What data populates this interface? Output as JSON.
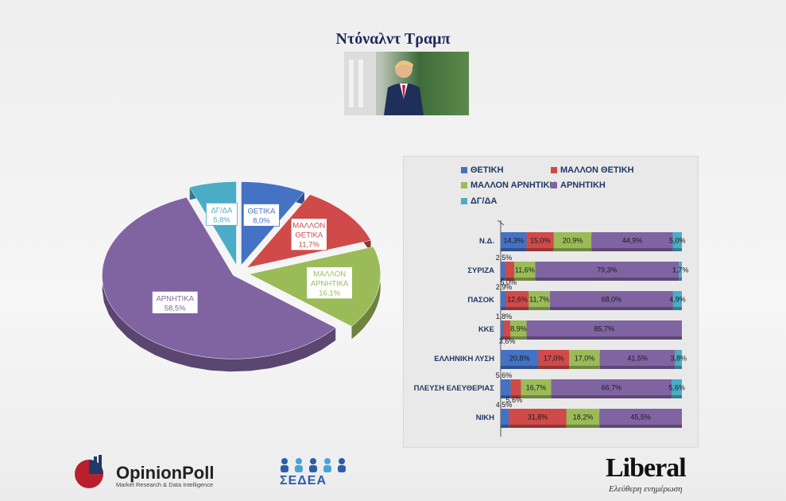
{
  "title": "Ντόναλντ Τραμπ",
  "colors": {
    "positive": "#4472c4",
    "rather_positive": "#d04a4a",
    "rather_negative": "#9bbb59",
    "negative": "#8064a2",
    "dk_na": "#4bacc6"
  },
  "chart_data": [
    {
      "type": "pie",
      "title": "",
      "slices": [
        {
          "label": "ΘΕΤΙΚΑ",
          "value": 8.0,
          "value_label": "8,0%"
        },
        {
          "label": "ΜΑΛΛΟΝ ΘΕΤΙΚΑ",
          "value": 11.7,
          "value_label": "11,7%"
        },
        {
          "label": "ΜΑΛΛΟΝ ΑΡΝΗΤΙΚΑ",
          "value": 16.1,
          "value_label": "16,1%"
        },
        {
          "label": "ΑΡΝΗΤΙΚΑ",
          "value": 58.5,
          "value_label": "58,5%"
        },
        {
          "label": "ΔΓ/ΔΑ",
          "value": 5.8,
          "value_label": "5,8%"
        }
      ]
    },
    {
      "type": "bar",
      "orientation": "horizontal",
      "stacked": true,
      "legend_position": "top",
      "categories": [
        "Ν.Δ.",
        "ΣΥΡΙΖΑ",
        "ΠΑΣΟΚ",
        "ΚΚΕ",
        "ΕΛΛΗΝΙΚΗ ΛΥΣΗ",
        "ΠΛΕΥΣΗ ΕΛΕΥΘΕΡΙΑΣ",
        "ΝΙΚΗ"
      ],
      "series": [
        {
          "name": "ΘΕΤΙΚΗ",
          "values": [
            14.3,
            2.5,
            2.9,
            1.8,
            20.8,
            5.6,
            4.5
          ],
          "labels": [
            "14,3%",
            "2,5%",
            "2,9%",
            "1,8%",
            "20,8%",
            "5,6%",
            "4,5%"
          ]
        },
        {
          "name": "ΜΑΛΛΟΝ ΘΕΤΙΚΗ",
          "values": [
            15.0,
            5.0,
            12.6,
            3.6,
            17.0,
            5.6,
            31.8
          ],
          "labels": [
            "15,0%",
            "5,0%",
            "12,6%",
            "3,6%",
            "17,0%",
            "5,6%",
            "31,8%"
          ]
        },
        {
          "name": "ΜΑΛΛΟΝ ΑΡΝΗΤΙΚΗ",
          "values": [
            20.9,
            11.6,
            11.7,
            8.9,
            17.0,
            16.7,
            18.2
          ],
          "labels": [
            "20,9%",
            "11,6%",
            "11,7%",
            "8,9%",
            "17,0%",
            "16,7%",
            "18,2%"
          ]
        },
        {
          "name": "ΑΡΝΗΤΙΚΗ",
          "values": [
            44.9,
            79.3,
            68.0,
            85.7,
            41.5,
            66.7,
            45.5
          ],
          "labels": [
            "44,9%",
            "79,3%",
            "68,0%",
            "85,7%",
            "41,5%",
            "66,7%",
            "45,5%"
          ]
        },
        {
          "name": "ΔΓ/ΔΑ",
          "values": [
            5.0,
            1.7,
            4.9,
            0,
            3.8,
            5.6,
            0
          ],
          "labels": [
            "5,0%",
            "1,7%",
            "4,9%",
            "",
            "3,8%",
            "5,6%",
            ""
          ]
        }
      ]
    }
  ],
  "logos": {
    "opinionpoll_name": "OpinionPoll",
    "opinionpoll_tagline": "Market Research & Data Intelligence",
    "sedea_name": "ΣΕΔΕΑ",
    "liberal_name": "Liberal",
    "liberal_tagline": "Ελεύθερη ενημέρωση"
  }
}
